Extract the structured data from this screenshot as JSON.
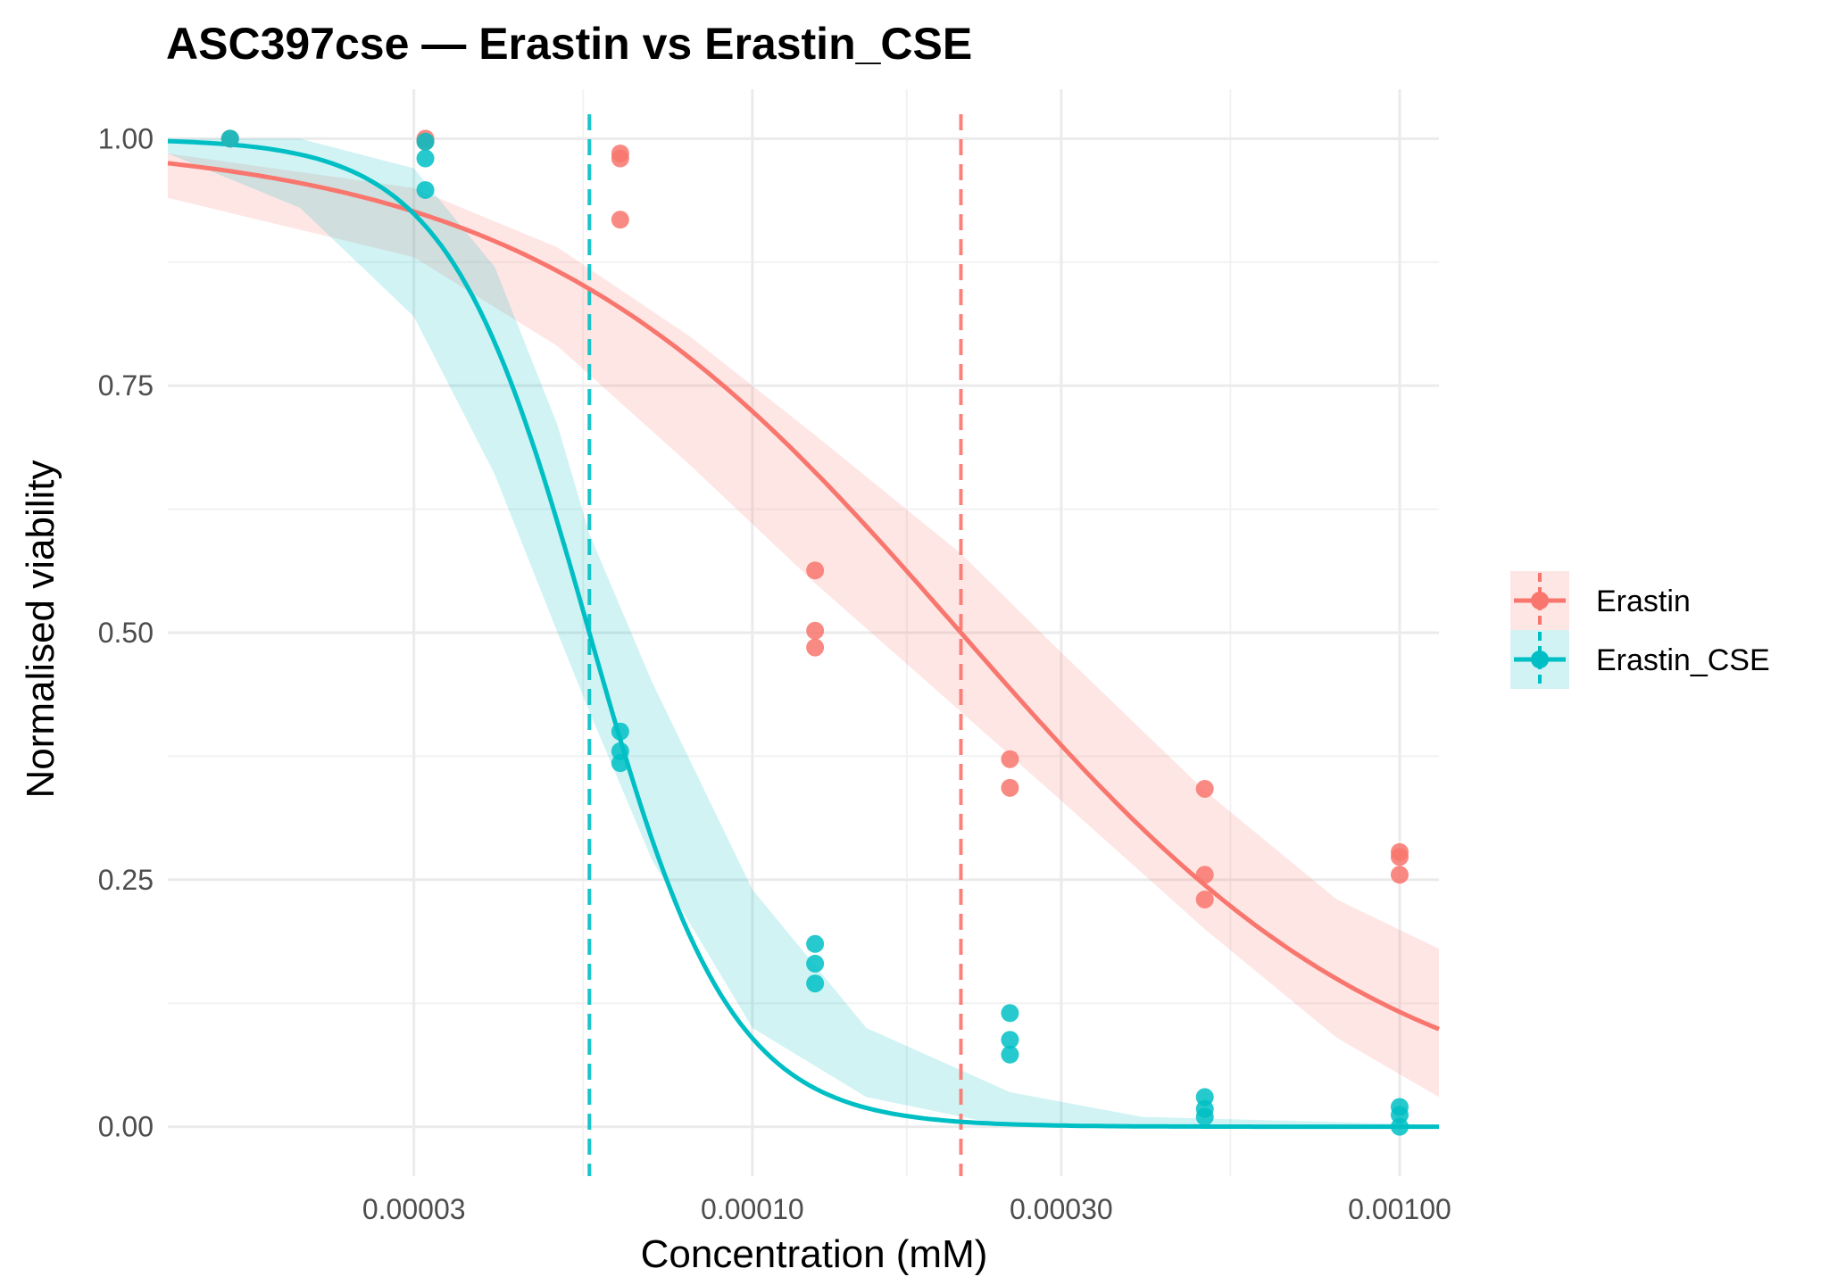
{
  "chart_data": {
    "type": "scatter",
    "title": "ASC397cse — Erastin vs Erastin_CSE",
    "xlabel": "Concentration (mM)",
    "ylabel": "Normalised viability",
    "x_scale": "log10",
    "xlim": [
      1.25e-05,
      0.00115
    ],
    "ylim": [
      -0.05,
      1.05
    ],
    "x_ticks": [
      {
        "value": 3e-05,
        "label": "0.00003"
      },
      {
        "value": 0.0001,
        "label": "0.00010"
      },
      {
        "value": 0.0003,
        "label": "0.00030"
      },
      {
        "value": 0.001,
        "label": "0.00100"
      }
    ],
    "y_ticks": [
      {
        "value": 0,
        "label": "0.00"
      },
      {
        "value": 0.25,
        "label": "0.25"
      },
      {
        "value": 0.5,
        "label": "0.50"
      },
      {
        "value": 0.75,
        "label": "0.75"
      },
      {
        "value": 1,
        "label": "1.00"
      }
    ],
    "grid": true,
    "legend_position": "right",
    "series": [
      {
        "name": "Erastin",
        "color": "#F8766D",
        "points": [
          {
            "x": 1.56e-05,
            "y": 1.0
          },
          {
            "x": 3.125e-05,
            "y": 1.0
          },
          {
            "x": 3.125e-05,
            "y": 0.997
          },
          {
            "x": 6.25e-05,
            "y": 0.985
          },
          {
            "x": 6.25e-05,
            "y": 0.98
          },
          {
            "x": 6.25e-05,
            "y": 0.918
          },
          {
            "x": 0.000125,
            "y": 0.563
          },
          {
            "x": 0.000125,
            "y": 0.502
          },
          {
            "x": 0.000125,
            "y": 0.485
          },
          {
            "x": 0.00025,
            "y": 0.372
          },
          {
            "x": 0.00025,
            "y": 0.343
          },
          {
            "x": 0.0005,
            "y": 0.342
          },
          {
            "x": 0.0005,
            "y": 0.255
          },
          {
            "x": 0.0005,
            "y": 0.23
          },
          {
            "x": 0.001,
            "y": 0.278
          },
          {
            "x": 0.001,
            "y": 0.273
          },
          {
            "x": 0.001,
            "y": 0.255
          }
        ],
        "fit": {
          "model": "log-logistic",
          "top": 1.0,
          "bottom": 0.0,
          "ec50": 0.00021,
          "hill": 1.3
        },
        "ci_band": [
          {
            "x": 1.25e-05,
            "lower": 0.94,
            "upper": 0.985
          },
          {
            "x": 3e-05,
            "lower": 0.88,
            "upper": 0.95
          },
          {
            "x": 5e-05,
            "lower": 0.79,
            "upper": 0.89
          },
          {
            "x": 8e-05,
            "lower": 0.67,
            "upper": 0.8
          },
          {
            "x": 0.000125,
            "lower": 0.55,
            "upper": 0.7
          },
          {
            "x": 0.00021,
            "lower": 0.42,
            "upper": 0.58
          },
          {
            "x": 0.0003,
            "lower": 0.33,
            "upper": 0.48
          },
          {
            "x": 0.0005,
            "lower": 0.2,
            "upper": 0.34
          },
          {
            "x": 0.0008,
            "lower": 0.09,
            "upper": 0.23
          },
          {
            "x": 0.00115,
            "lower": 0.03,
            "upper": 0.18
          }
        ],
        "ec50_line": 0.00021
      },
      {
        "name": "Erastin_CSE",
        "color": "#00BFC4",
        "points": [
          {
            "x": 1.56e-05,
            "y": 1.0
          },
          {
            "x": 3.125e-05,
            "y": 0.997
          },
          {
            "x": 3.125e-05,
            "y": 0.98
          },
          {
            "x": 3.125e-05,
            "y": 0.948
          },
          {
            "x": 6.25e-05,
            "y": 0.4
          },
          {
            "x": 6.25e-05,
            "y": 0.38
          },
          {
            "x": 6.25e-05,
            "y": 0.368
          },
          {
            "x": 0.000125,
            "y": 0.185
          },
          {
            "x": 0.000125,
            "y": 0.165
          },
          {
            "x": 0.000125,
            "y": 0.145
          },
          {
            "x": 0.00025,
            "y": 0.115
          },
          {
            "x": 0.00025,
            "y": 0.088
          },
          {
            "x": 0.00025,
            "y": 0.073
          },
          {
            "x": 0.0005,
            "y": 0.03
          },
          {
            "x": 0.0005,
            "y": 0.018
          },
          {
            "x": 0.0005,
            "y": 0.01
          },
          {
            "x": 0.001,
            "y": 0.02
          },
          {
            "x": 0.001,
            "y": 0.012
          },
          {
            "x": 0.001,
            "y": 0.0
          }
        ],
        "fit": {
          "model": "log-logistic",
          "top": 1.0,
          "bottom": 0.0,
          "ec50": 5.6e-05,
          "hill": 4.0
        },
        "ci_band": [
          {
            "x": 1.25e-05,
            "lower": 0.985,
            "upper": 1.0
          },
          {
            "x": 2e-05,
            "lower": 0.93,
            "upper": 1.0
          },
          {
            "x": 3e-05,
            "lower": 0.82,
            "upper": 0.97
          },
          {
            "x": 4e-05,
            "lower": 0.66,
            "upper": 0.87
          },
          {
            "x": 5e-05,
            "lower": 0.5,
            "upper": 0.71
          },
          {
            "x": 5.6e-05,
            "lower": 0.42,
            "upper": 0.6
          },
          {
            "x": 7e-05,
            "lower": 0.27,
            "upper": 0.45
          },
          {
            "x": 0.0001,
            "lower": 0.1,
            "upper": 0.24
          },
          {
            "x": 0.00015,
            "lower": 0.03,
            "upper": 0.1
          },
          {
            "x": 0.00025,
            "lower": 0.0,
            "upper": 0.035
          },
          {
            "x": 0.0004,
            "lower": 0.0,
            "upper": 0.01
          },
          {
            "x": 0.00115,
            "lower": 0.0,
            "upper": 0.002
          }
        ],
        "ec50_line": 5.6e-05
      }
    ]
  }
}
